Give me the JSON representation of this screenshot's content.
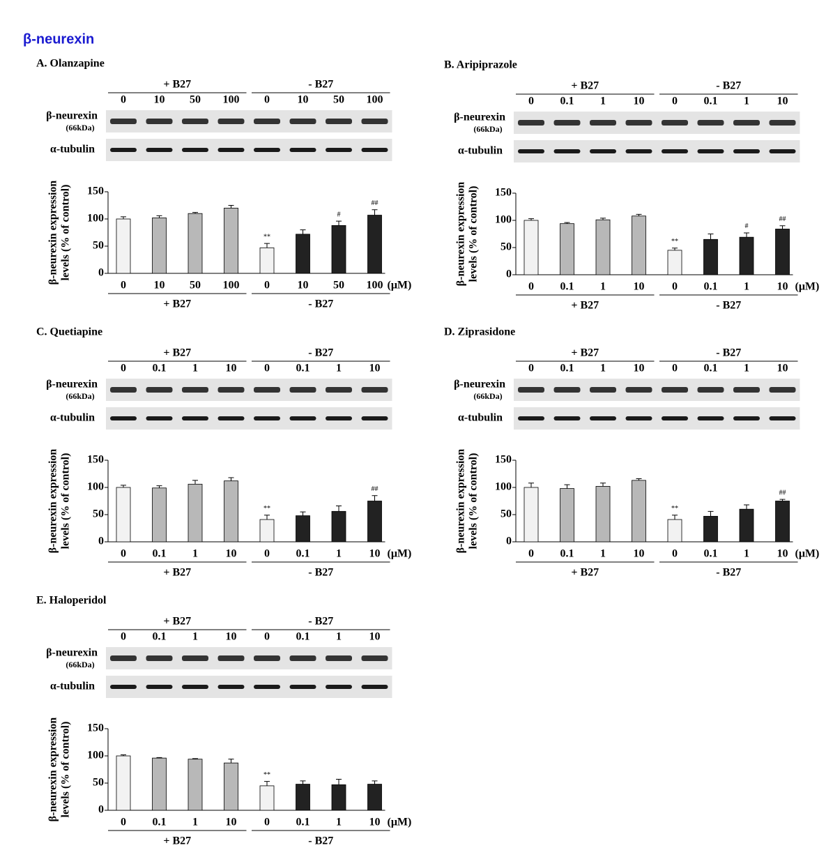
{
  "header": "β-neurexin",
  "chart_data": [
    {
      "type": "bar",
      "title": "A. Olanzapine",
      "blot_labels": [
        "β-neurexin",
        "(66kDa)",
        "α-tubulin"
      ],
      "ylabel": [
        "β-neurexin expression",
        "levels (% of control)"
      ],
      "groups": [
        "+ B27",
        "- B27"
      ],
      "unit": "(μM)",
      "categories": [
        "0",
        "10",
        "50",
        "100",
        "0",
        "10",
        "50",
        "100"
      ],
      "values": [
        100,
        102,
        110,
        120,
        47,
        72,
        88,
        107
      ],
      "errors": [
        4,
        4,
        2,
        5,
        8,
        8,
        8,
        10
      ],
      "annotations": [
        null,
        null,
        null,
        null,
        "**",
        null,
        "#",
        "##"
      ],
      "colors": [
        "#f2f2f2",
        "#b8b8b8",
        "#b8b8b8",
        "#b8b8b8",
        "#f2f2f2",
        "#222222",
        "#222222",
        "#222222"
      ],
      "ylim": [
        0,
        150
      ],
      "yticks": [
        0,
        50,
        100,
        150
      ]
    },
    {
      "type": "bar",
      "title": "B. Aripiprazole",
      "blot_labels": [
        "β-neurexin",
        "(66kDa)",
        "α-tubulin"
      ],
      "ylabel": [
        "β-neurexin expression",
        "levels (% of control)"
      ],
      "groups": [
        "+ B27",
        "- B27"
      ],
      "unit": "(μM)",
      "categories": [
        "0",
        "0.1",
        "1",
        "10",
        "0",
        "0.1",
        "1",
        "10"
      ],
      "values": [
        100,
        94,
        101,
        108,
        45,
        65,
        69,
        84
      ],
      "errors": [
        3,
        2,
        3,
        3,
        4,
        10,
        8,
        6
      ],
      "annotations": [
        null,
        null,
        null,
        null,
        "**",
        null,
        "#",
        "##"
      ],
      "colors": [
        "#f2f2f2",
        "#b8b8b8",
        "#b8b8b8",
        "#b8b8b8",
        "#f2f2f2",
        "#222222",
        "#222222",
        "#222222"
      ],
      "ylim": [
        0,
        150
      ],
      "yticks": [
        0,
        50,
        100,
        150
      ]
    },
    {
      "type": "bar",
      "title": "C. Quetiapine",
      "blot_labels": [
        "β-neurexin",
        "(66kDa)",
        "α-tubulin"
      ],
      "ylabel": [
        "β-neurexin expression",
        "levels (% of control)"
      ],
      "groups": [
        "+ B27",
        "- B27"
      ],
      "unit": "(μM)",
      "categories": [
        "0",
        "0.1",
        "1",
        "10",
        "0",
        "0.1",
        "1",
        "10"
      ],
      "values": [
        100,
        99,
        106,
        112,
        41,
        48,
        56,
        75
      ],
      "errors": [
        4,
        4,
        7,
        6,
        8,
        7,
        10,
        10
      ],
      "annotations": [
        null,
        null,
        null,
        null,
        "**",
        null,
        null,
        "##"
      ],
      "colors": [
        "#f2f2f2",
        "#b8b8b8",
        "#b8b8b8",
        "#b8b8b8",
        "#f2f2f2",
        "#222222",
        "#222222",
        "#222222"
      ],
      "ylim": [
        0,
        150
      ],
      "yticks": [
        0,
        50,
        100,
        150
      ]
    },
    {
      "type": "bar",
      "title": "D. Ziprasidone",
      "blot_labels": [
        "β-neurexin",
        "(66kDa)",
        "α-tubulin"
      ],
      "ylabel": [
        "β-neurexin expression",
        "levels (% of control)"
      ],
      "groups": [
        "+ B27",
        "- B27"
      ],
      "unit": "(μM)",
      "categories": [
        "0",
        "0.1",
        "1",
        "10",
        "0",
        "0.1",
        "1",
        "10"
      ],
      "values": [
        100,
        98,
        102,
        113,
        41,
        47,
        60,
        75
      ],
      "errors": [
        8,
        7,
        6,
        3,
        8,
        9,
        8,
        3
      ],
      "annotations": [
        null,
        null,
        null,
        null,
        "**",
        null,
        null,
        "##"
      ],
      "colors": [
        "#f2f2f2",
        "#b8b8b8",
        "#b8b8b8",
        "#b8b8b8",
        "#f2f2f2",
        "#222222",
        "#222222",
        "#222222"
      ],
      "ylim": [
        0,
        150
      ],
      "yticks": [
        0,
        50,
        100,
        150
      ]
    },
    {
      "type": "bar",
      "title": "E. Haloperidol",
      "blot_labels": [
        "β-neurexin",
        "(66kDa)",
        "α-tubulin"
      ],
      "ylabel": [
        "β-neurexin expression",
        "levels (% of control)"
      ],
      "groups": [
        "+ B27",
        "- B27"
      ],
      "unit": "(μM)",
      "categories": [
        "0",
        "0.1",
        "1",
        "10",
        "0",
        "0.1",
        "1",
        "10"
      ],
      "values": [
        100,
        96,
        94,
        87,
        45,
        48,
        47,
        48
      ],
      "errors": [
        2,
        1,
        1,
        7,
        8,
        6,
        10,
        6
      ],
      "annotations": [
        null,
        null,
        null,
        null,
        "**",
        null,
        null,
        null
      ],
      "colors": [
        "#f2f2f2",
        "#b8b8b8",
        "#b8b8b8",
        "#b8b8b8",
        "#f2f2f2",
        "#222222",
        "#222222",
        "#222222"
      ],
      "ylim": [
        0,
        150
      ],
      "yticks": [
        0,
        50,
        100,
        150
      ]
    }
  ]
}
